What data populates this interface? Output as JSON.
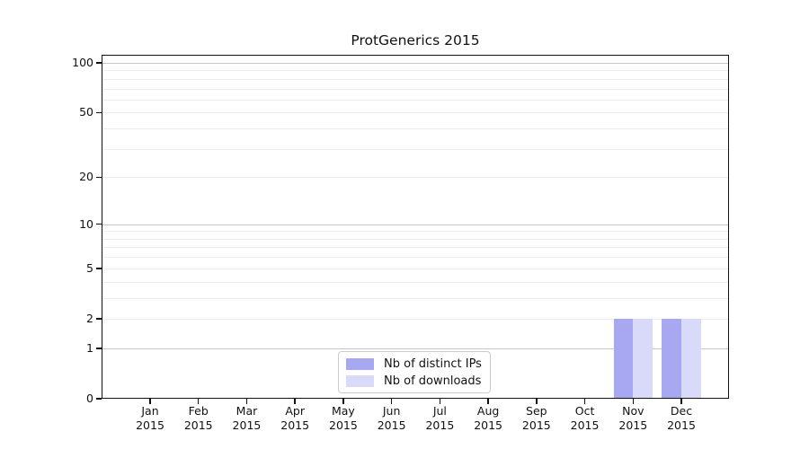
{
  "chart_data": {
    "type": "bar",
    "title": "ProtGenerics 2015",
    "categories": [
      "Jan 2015",
      "Feb 2015",
      "Mar 2015",
      "Apr 2015",
      "May 2015",
      "Jun 2015",
      "Jul 2015",
      "Aug 2015",
      "Sep 2015",
      "Oct 2015",
      "Nov 2015",
      "Dec 2015"
    ],
    "series": [
      {
        "name": "Nb of distinct IPs",
        "color": "#a7a7f2",
        "values": [
          0,
          0,
          0,
          0,
          0,
          0,
          0,
          0,
          0,
          0,
          2,
          2
        ]
      },
      {
        "name": "Nb of downloads",
        "color": "#d9d9f9",
        "values": [
          0,
          0,
          0,
          0,
          0,
          0,
          0,
          0,
          0,
          0,
          2,
          2
        ]
      }
    ],
    "xlabel": "",
    "ylabel": "",
    "y_scale": "log1p",
    "y_tick_values": [
      0,
      1,
      2,
      5,
      10,
      20,
      50,
      100
    ],
    "y_tick_labels": [
      "0",
      "1",
      "2",
      "5",
      "10",
      "20",
      "50",
      "100"
    ],
    "y_major_gridlines": [
      1,
      10,
      100
    ],
    "y_minor_gridlines": [
      2,
      3,
      4,
      5,
      6,
      7,
      8,
      9,
      20,
      30,
      40,
      50,
      60,
      70,
      80,
      90
    ],
    "ylim": [
      0,
      111
    ],
    "grid": true,
    "legend_position": "bottom-center"
  },
  "colors": {
    "background": "#ffffff",
    "axis": "#111111",
    "grid_major": "#c6c6c6",
    "grid_minor": "#ededed",
    "bar_distinct_ips": "#a7a7f2",
    "bar_downloads": "#d9d9f9",
    "legend_border": "#cccccc"
  }
}
